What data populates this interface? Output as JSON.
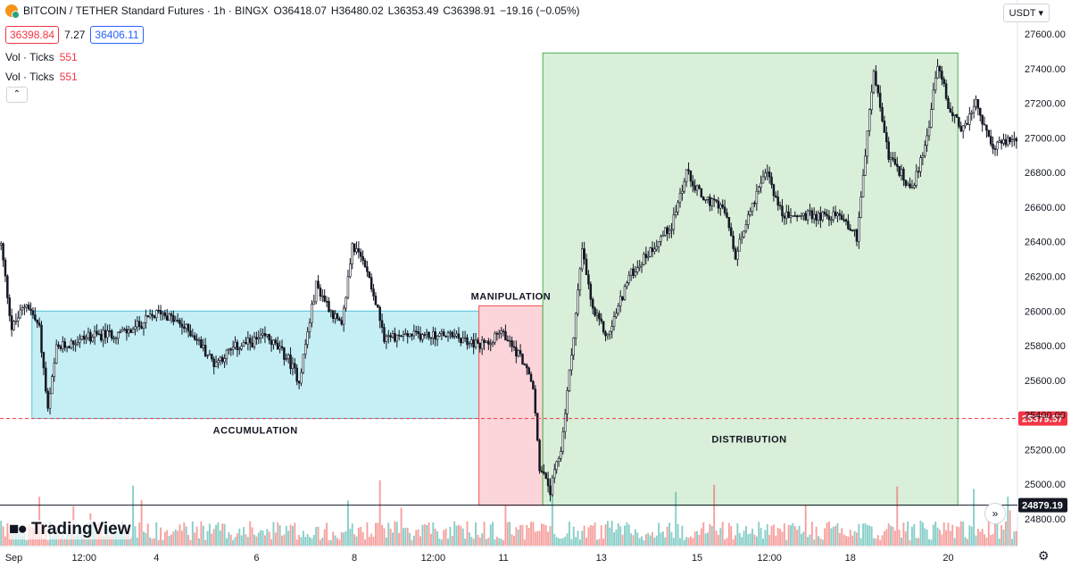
{
  "header": {
    "symbol": "BITCOIN / TETHER Standard Futures · 1h · BINGX",
    "open": "O36418.07",
    "high": "H36480.02",
    "low": "L36353.49",
    "close": "C36398.91",
    "change": "−19.16 (−0.05%)"
  },
  "price_boxes": {
    "bid": "36398.84",
    "spread": "7.27",
    "ask": "36406.11"
  },
  "indicators": [
    {
      "label": "Vol · Ticks",
      "value": "551"
    },
    {
      "label": "Vol · Ticks",
      "value": "551"
    }
  ],
  "currency": "USDT",
  "logo_text": "TradingView",
  "colors": {
    "up": "#26a69a",
    "down": "#ef5350",
    "price_label": "#f23645",
    "accumulation": "#c6eef5",
    "manipulation": "#fbd5da",
    "distribution": "#d9efd9"
  },
  "chart_data": {
    "type": "candlestick",
    "ylim": [
      24750,
      27700
    ],
    "y_ticks": [
      "27600.00",
      "27400.00",
      "27200.00",
      "27000.00",
      "26800.00",
      "26600.00",
      "26400.00",
      "26200.00",
      "26000.00",
      "25800.00",
      "25600.00",
      "25400.00",
      "25200.00",
      "25000.00",
      "24800.00"
    ],
    "x_ticks": [
      "Sep",
      "12:00",
      "4",
      "6",
      "8",
      "12:00",
      "11",
      "13",
      "15",
      "12:00",
      "18",
      "20"
    ],
    "price_lines": [
      {
        "label": "25379.57",
        "value": 25379.57,
        "style": "dashed"
      },
      {
        "label": "24879.19",
        "value": 24879.19,
        "style": "solid"
      }
    ],
    "zones": [
      {
        "label": "ACCUMULATION",
        "from_bar": 15,
        "to_bar": 225,
        "low": 25380,
        "high": 26000
      },
      {
        "label": "MANIPULATION",
        "from_bar": 225,
        "to_bar": 255,
        "low": 24879,
        "high": 26030
      },
      {
        "label": "DISTRIBUTION",
        "from_bar": 255,
        "to_bar": 450,
        "low": 24879,
        "high": 27490
      }
    ],
    "price_path": [
      [
        0,
        26380
      ],
      [
        5,
        25900
      ],
      [
        12,
        26050
      ],
      [
        18,
        25900
      ],
      [
        22,
        25420
      ],
      [
        26,
        25780
      ],
      [
        40,
        25850
      ],
      [
        60,
        25880
      ],
      [
        75,
        26000
      ],
      [
        90,
        25870
      ],
      [
        100,
        25700
      ],
      [
        110,
        25790
      ],
      [
        125,
        25850
      ],
      [
        135,
        25720
      ],
      [
        140,
        25600
      ],
      [
        148,
        26150
      ],
      [
        160,
        25900
      ],
      [
        165,
        26380
      ],
      [
        172,
        26250
      ],
      [
        180,
        25850
      ],
      [
        195,
        25860
      ],
      [
        210,
        25860
      ],
      [
        225,
        25800
      ],
      [
        235,
        25880
      ],
      [
        245,
        25720
      ],
      [
        250,
        25550
      ],
      [
        253,
        25100
      ],
      [
        258,
        24960
      ],
      [
        263,
        25200
      ],
      [
        268,
        25750
      ],
      [
        273,
        26350
      ],
      [
        278,
        26000
      ],
      [
        285,
        25850
      ],
      [
        295,
        26200
      ],
      [
        305,
        26350
      ],
      [
        315,
        26500
      ],
      [
        322,
        26800
      ],
      [
        330,
        26650
      ],
      [
        340,
        26580
      ],
      [
        345,
        26300
      ],
      [
        352,
        26600
      ],
      [
        360,
        26800
      ],
      [
        367,
        26550
      ],
      [
        380,
        26550
      ],
      [
        395,
        26550
      ],
      [
        402,
        26430
      ],
      [
        410,
        27380
      ],
      [
        417,
        26900
      ],
      [
        428,
        26700
      ],
      [
        435,
        27000
      ],
      [
        440,
        27430
      ],
      [
        446,
        27150
      ],
      [
        452,
        27050
      ],
      [
        458,
        27200
      ],
      [
        465,
        26950
      ],
      [
        478,
        27000
      ]
    ],
    "n_bars": 478
  }
}
